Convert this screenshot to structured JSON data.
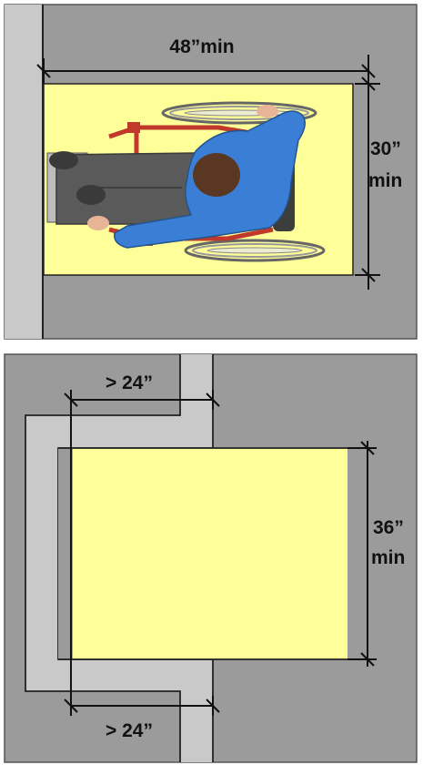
{
  "colors": {
    "floor": "#9b9b9b",
    "wall": "#c9c9c9",
    "clear_space": "#ffff99",
    "dim_line": "#111111",
    "person_shirt": "#3a7fd5",
    "person_pants": "#5a5a5a",
    "person_hair": "#5a3722",
    "wheelchair_frame": "#c0392b",
    "wheel": "#777777"
  },
  "top_diagram": {
    "width_dimension": "48”min",
    "depth_dimension_value": "30”",
    "depth_dimension_unit": "min",
    "content": "wheelchair-user-top-view"
  },
  "bottom_diagram": {
    "top_offset_dimension": "> 24”",
    "bottom_offset_dimension": "> 24”",
    "depth_dimension_value": "36”",
    "depth_dimension_unit": "min"
  }
}
